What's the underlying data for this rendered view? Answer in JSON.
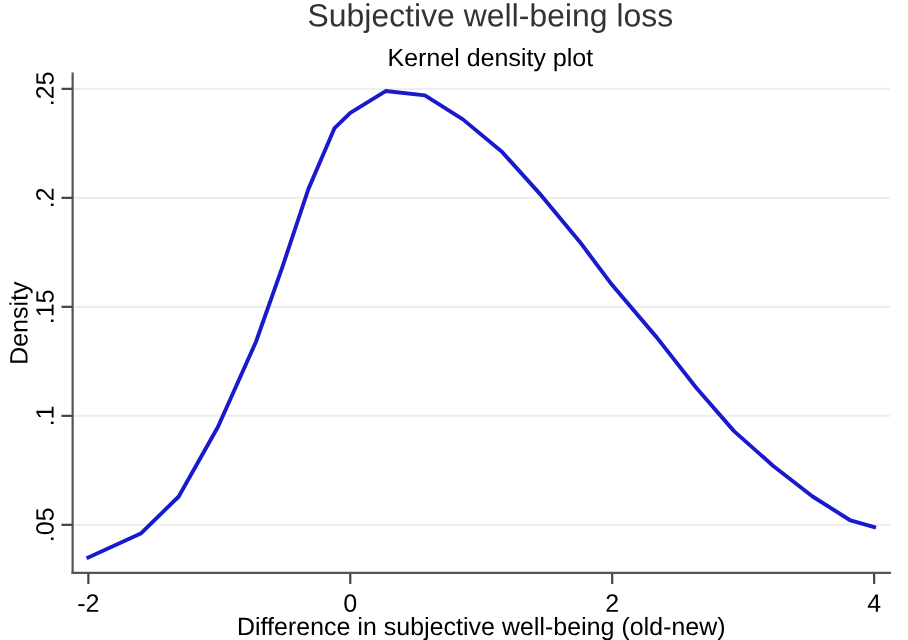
{
  "chart_data": {
    "type": "line",
    "title": "Subjective well-being loss",
    "subtitle": "Kernel density plot",
    "xlabel": "Difference in subjective well-being (old-new)",
    "ylabel": "Density",
    "x": [
      -2,
      -1.6,
      -1.31,
      -1.01,
      -0.72,
      -0.52,
      -0.32,
      -0.12,
      0,
      0.27,
      0.57,
      0.86,
      1.16,
      1.46,
      1.75,
      2,
      2.34,
      2.64,
      2.93,
      3.23,
      3.53,
      3.82,
      4
    ],
    "series": [
      {
        "color": "#1a1acc",
        "values": [
          0.035,
          0.046,
          0.063,
          0.095,
          0.134,
          0.168,
          0.204,
          0.232,
          0.239,
          0.249,
          0.247,
          0.236,
          0.221,
          0.201,
          0.18,
          0.16,
          0.136,
          0.113,
          0.093,
          0.077,
          0.063,
          0.052,
          0.049
        ]
      }
    ],
    "xlim": [
      -2.12,
      4.12
    ],
    "ylim": [
      0.028,
      0.257
    ],
    "xticks": [
      -2,
      0,
      2,
      4
    ],
    "yticks": [
      {
        "value": 0.05,
        "label": ".05"
      },
      {
        "value": 0.1,
        "label": ".1"
      },
      {
        "value": 0.15,
        "label": ".15"
      },
      {
        "value": 0.2,
        "label": ".2"
      },
      {
        "value": 0.25,
        "label": ".25"
      }
    ],
    "grid": "y",
    "legend": false,
    "marker": "none",
    "line_style": "solid"
  }
}
